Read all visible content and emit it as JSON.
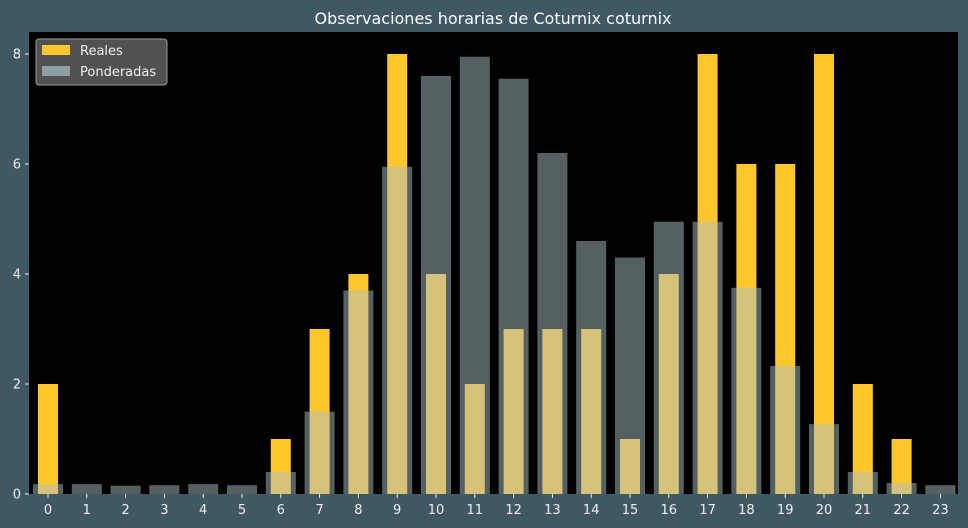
{
  "chart_data": {
    "type": "bar",
    "title": "Observaciones horarias de Coturnix coturnix",
    "xlabel": "",
    "ylabel": "",
    "categories": [
      "0",
      "1",
      "2",
      "3",
      "4",
      "5",
      "6",
      "7",
      "8",
      "9",
      "10",
      "11",
      "12",
      "13",
      "14",
      "15",
      "16",
      "17",
      "18",
      "19",
      "20",
      "21",
      "22",
      "23"
    ],
    "series": [
      {
        "name": "Reales",
        "color": "#ffc72c",
        "values": [
          2,
          0,
          0,
          0,
          0,
          0,
          1,
          3,
          4,
          8,
          4,
          2,
          3,
          3,
          3,
          1,
          4,
          8,
          6,
          6,
          8,
          2,
          1,
          0
        ]
      },
      {
        "name": "Ponderadas",
        "color": "#a9bfc6",
        "values": [
          0.18,
          0.18,
          0.15,
          0.16,
          0.18,
          0.16,
          0.4,
          1.5,
          3.7,
          5.95,
          7.6,
          7.95,
          7.55,
          6.2,
          4.6,
          4.3,
          4.95,
          4.95,
          3.75,
          2.33,
          1.27,
          0.4,
          0.2,
          0.16
        ]
      }
    ],
    "ylim": [
      0,
      8.4
    ],
    "yticks": [
      0,
      2,
      4,
      6,
      8
    ],
    "grid": false,
    "legend": "top-left"
  }
}
